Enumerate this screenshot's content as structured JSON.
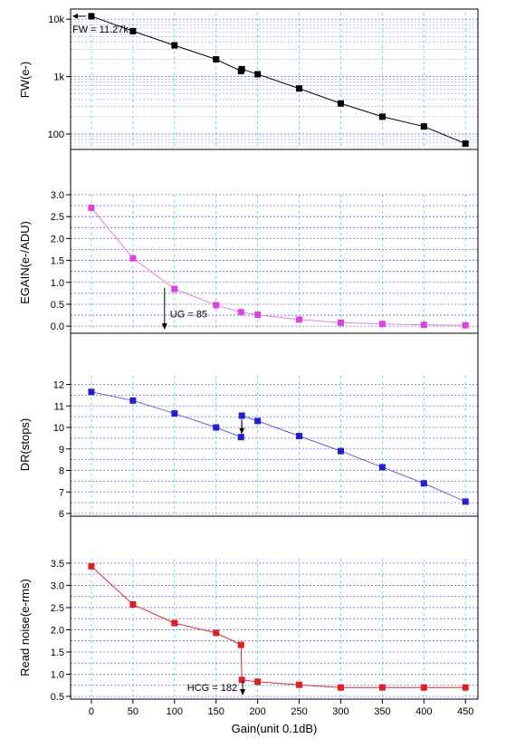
{
  "chart_data": [
    {
      "type": "line",
      "ylabel": "FW(e-)",
      "yscale": "log",
      "ylim": [
        60,
        13000
      ],
      "yticks": [
        {
          "v": 100,
          "label": "100"
        },
        {
          "v": 1000,
          "label": "1k"
        },
        {
          "v": 10000,
          "label": "10k"
        }
      ],
      "color": "#000000",
      "marker_color": "#000000",
      "x": [
        0,
        50,
        100,
        150,
        180,
        181,
        200,
        250,
        300,
        350,
        400,
        450
      ],
      "y": [
        11270,
        6200,
        3500,
        2000,
        1250,
        1350,
        1100,
        620,
        340,
        200,
        135,
        68
      ],
      "annotation": {
        "text": "FW = 11.27k"
      }
    },
    {
      "type": "line",
      "ylabel": "EGAIN(e-/ADU)",
      "ylim": [
        -0.1,
        3.0
      ],
      "yticks": [
        {
          "v": 0.0,
          "label": "0.0"
        },
        {
          "v": 0.5,
          "label": "0.5"
        },
        {
          "v": 1.0,
          "label": "1.0"
        },
        {
          "v": 1.5,
          "label": "1.5"
        },
        {
          "v": 2.0,
          "label": "2.0"
        },
        {
          "v": 2.5,
          "label": "2.5"
        },
        {
          "v": 3.0,
          "label": "3.0"
        }
      ],
      "color": "#e080e0",
      "marker_color": "#e040e0",
      "x": [
        0,
        50,
        100,
        150,
        180,
        200,
        250,
        300,
        350,
        400,
        450
      ],
      "y": [
        2.7,
        1.55,
        0.85,
        0.48,
        0.32,
        0.26,
        0.15,
        0.08,
        0.05,
        0.03,
        0.02
      ],
      "annotation": {
        "text": "UG = 85",
        "x": 88
      }
    },
    {
      "type": "line",
      "ylabel": "DR(stops)",
      "ylim": [
        6,
        12.4
      ],
      "yticks": [
        {
          "v": 6,
          "label": "6"
        },
        {
          "v": 7,
          "label": "7"
        },
        {
          "v": 8,
          "label": "8"
        },
        {
          "v": 9,
          "label": "9"
        },
        {
          "v": 10,
          "label": "10"
        },
        {
          "v": 11,
          "label": "11"
        },
        {
          "v": 12,
          "label": "12"
        }
      ],
      "color": "#6060d0",
      "marker_color": "#2020d0",
      "x": [
        0,
        50,
        100,
        150,
        180,
        181,
        200,
        250,
        300,
        350,
        400,
        450
      ],
      "y": [
        11.65,
        11.25,
        10.65,
        10.0,
        9.55,
        10.55,
        10.3,
        9.6,
        8.9,
        8.15,
        7.4,
        6.55
      ]
    },
    {
      "type": "line",
      "ylabel": "Read noise(e-rms)",
      "ylim": [
        0.5,
        3.6
      ],
      "yticks": [
        {
          "v": 0.5,
          "label": "0.5"
        },
        {
          "v": 1.0,
          "label": "1.0"
        },
        {
          "v": 1.5,
          "label": "1.5"
        },
        {
          "v": 2.0,
          "label": "2.0"
        },
        {
          "v": 2.5,
          "label": "2.5"
        },
        {
          "v": 3.0,
          "label": "3.0"
        },
        {
          "v": 3.5,
          "label": "3.5"
        }
      ],
      "color": "#d03030",
      "marker_color": "#e02020",
      "x": [
        0,
        50,
        100,
        150,
        180,
        181,
        200,
        250,
        300,
        350,
        400,
        450
      ],
      "y": [
        3.43,
        2.57,
        2.15,
        1.93,
        1.66,
        0.87,
        0.83,
        0.76,
        0.7,
        0.7,
        0.7,
        0.7
      ],
      "annotation": {
        "text": "HCG = 182",
        "x": 182
      }
    }
  ],
  "x_axis": {
    "label": "Gain(unit 0.1dB)",
    "xlim": [
      -25,
      465
    ],
    "ticks": [
      0,
      50,
      100,
      150,
      200,
      250,
      300,
      350,
      400,
      450
    ]
  }
}
